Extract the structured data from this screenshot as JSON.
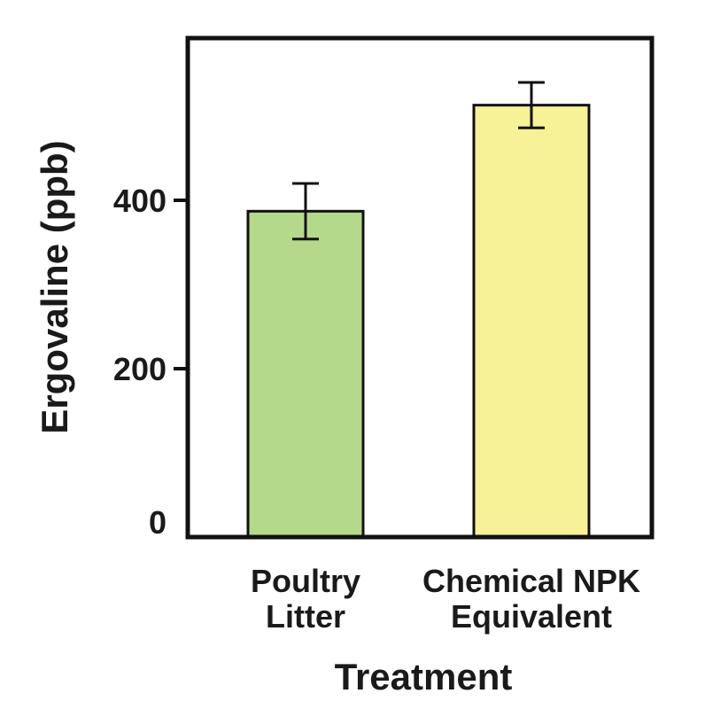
{
  "chart_data": {
    "type": "bar",
    "categories": [
      [
        "Poultry",
        "Litter"
      ],
      [
        "Chemical NPK",
        "Equivalent"
      ]
    ],
    "values": [
      387,
      513
    ],
    "errors": [
      33,
      27
    ],
    "colors": [
      "#b5d98a",
      "#f7f198"
    ],
    "title": "",
    "xlabel": "Treatment",
    "ylabel": "Ergovaline (ppb)",
    "ylim": [
      0,
      590
    ],
    "yticks": [
      0,
      200,
      400
    ],
    "grid": false,
    "legend": "none"
  }
}
